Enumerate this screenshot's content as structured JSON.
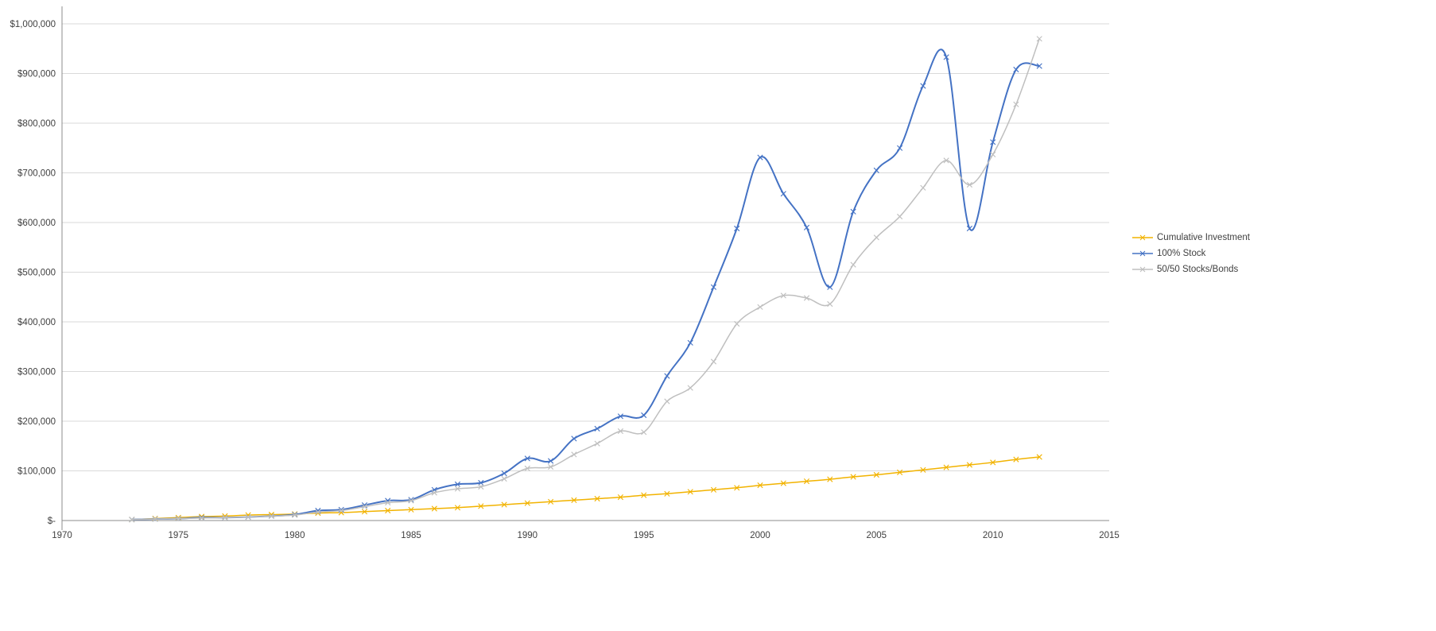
{
  "chart_data": {
    "type": "line",
    "title": "",
    "xlabel": "",
    "ylabel": "",
    "x_range": [
      1970,
      2015
    ],
    "y_range": [
      0,
      1000000
    ],
    "grid": "horizontal",
    "legend_position": "right",
    "smoothed_lines": true,
    "marker_style": "x",
    "colors": {
      "grid": "#D9D9D9",
      "axis": "#8C8C8C",
      "text": "#404040"
    },
    "x_ticks": [
      "1970",
      "1975",
      "1980",
      "1985",
      "1990",
      "1995",
      "2000",
      "2005",
      "2010",
      "2015"
    ],
    "y_ticks": [
      {
        "value": 0,
        "label": "$-"
      },
      {
        "value": 100000,
        "label": "$100,000"
      },
      {
        "value": 200000,
        "label": "$200,000"
      },
      {
        "value": 300000,
        "label": "$300,000"
      },
      {
        "value": 400000,
        "label": "$400,000"
      },
      {
        "value": 500000,
        "label": "$500,000"
      },
      {
        "value": 600000,
        "label": "$600,000"
      },
      {
        "value": 700000,
        "label": "$700,000"
      },
      {
        "value": 800000,
        "label": "$800,000"
      },
      {
        "value": 900000,
        "label": "$900,000"
      },
      {
        "value": 1000000,
        "label": "$1,000,000"
      }
    ],
    "years": [
      1973,
      1974,
      1975,
      1976,
      1977,
      1978,
      1979,
      1980,
      1981,
      1982,
      1983,
      1984,
      1985,
      1986,
      1987,
      1988,
      1989,
      1990,
      1991,
      1992,
      1993,
      1994,
      1995,
      1996,
      1997,
      1998,
      1999,
      2000,
      2001,
      2002,
      2003,
      2004,
      2005,
      2006,
      2007,
      2008,
      2009,
      2010,
      2011,
      2012
    ],
    "series": [
      {
        "name": "Cumulative Investment",
        "color": "#F2B300",
        "values": [
          2000,
          4000,
          6000,
          8000,
          9000,
          11000,
          12000,
          13000,
          15000,
          16000,
          18000,
          20000,
          22000,
          24000,
          26000,
          29000,
          32000,
          35000,
          38000,
          41000,
          44000,
          47000,
          51000,
          54000,
          58000,
          62000,
          66000,
          71000,
          75000,
          79000,
          83000,
          88000,
          92000,
          97000,
          102000,
          107000,
          112000,
          117000,
          123000,
          128000
        ]
      },
      {
        "name": "100% Stock",
        "color": "#4472C4",
        "values": [
          2000,
          3000,
          4000,
          6000,
          6000,
          7000,
          9000,
          12000,
          20000,
          22000,
          31000,
          40000,
          42000,
          62000,
          73000,
          76000,
          95000,
          125000,
          120000,
          165000,
          185000,
          210000,
          212000,
          291000,
          358000,
          470000,
          588000,
          731000,
          658000,
          590000,
          470000,
          622000,
          705000,
          750000,
          875000,
          933000,
          588000,
          762000,
          908000,
          915000
        ]
      },
      {
        "name": "50/50 Stocks/Bonds",
        "color": "#BFBFBF",
        "values": [
          2000,
          3000,
          4000,
          5000,
          6000,
          7000,
          9000,
          11000,
          17000,
          20000,
          28000,
          36000,
          40000,
          56000,
          64000,
          68000,
          84000,
          105000,
          108000,
          133000,
          155000,
          180000,
          178000,
          240000,
          267000,
          320000,
          396000,
          430000,
          453000,
          448000,
          436000,
          515000,
          570000,
          612000,
          670000,
          725000,
          676000,
          737000,
          838000,
          970000
        ]
      }
    ]
  }
}
